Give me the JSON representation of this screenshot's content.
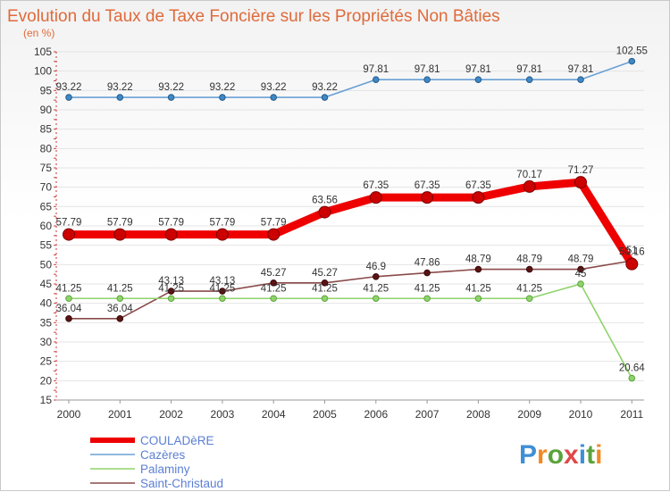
{
  "chart_data": {
    "type": "line",
    "title": "Evolution du Taux de Taxe Foncière sur les Propriétés Non Bâties",
    "subtitle": "(en %)",
    "categories": [
      "2000",
      "2001",
      "2002",
      "2003",
      "2004",
      "2005",
      "2006",
      "2007",
      "2008",
      "2009",
      "2010",
      "2011"
    ],
    "ylim": [
      15,
      105
    ],
    "yticks": [
      15,
      20,
      25,
      30,
      35,
      40,
      45,
      50,
      55,
      60,
      65,
      70,
      75,
      80,
      85,
      90,
      95,
      100,
      105
    ],
    "grid": true,
    "series": [
      {
        "name": "COULADèRE",
        "color": "#ee0000",
        "values": [
          57.79,
          57.79,
          57.79,
          57.79,
          57.79,
          63.56,
          67.35,
          67.35,
          67.35,
          70.17,
          71.27,
          50.16
        ],
        "labels": [
          "57.79",
          "57.79",
          "57.79",
          "57.79",
          "57.79",
          "63.56",
          "67.35",
          "67.35",
          "67.35",
          "70.17",
          "71.27",
          "50.16"
        ]
      },
      {
        "name": "Cazères",
        "color": "#6aa0d6",
        "values": [
          93.22,
          93.22,
          93.22,
          93.22,
          93.22,
          93.22,
          97.81,
          97.81,
          97.81,
          97.81,
          97.81,
          102.55
        ],
        "labels": [
          "93.22",
          "93.22",
          "93.22",
          "93.22",
          "93.22",
          "93.22",
          "97.81",
          "97.81",
          "97.81",
          "97.81",
          "97.81",
          "102.55"
        ]
      },
      {
        "name": "Palaminy",
        "color": "#8fd36a",
        "values": [
          41.25,
          41.25,
          41.25,
          41.25,
          41.25,
          41.25,
          41.25,
          41.25,
          41.25,
          41.25,
          45,
          20.64
        ],
        "labels": [
          "41.25",
          "41.25",
          "41.25",
          "41.25",
          "41.25",
          "41.25",
          "41.25",
          "41.25",
          "41.25",
          "41.25",
          "45",
          "20.64"
        ]
      },
      {
        "name": "Saint-Christaud",
        "color": "#8a4a4a",
        "values": [
          36.04,
          36.04,
          43.13,
          43.13,
          45.27,
          45.27,
          46.9,
          47.86,
          48.79,
          48.79,
          48.79,
          51
        ],
        "labels": [
          "36.04",
          "36.04",
          "43.13",
          "43.13",
          "45.27",
          "45.27",
          "46.9",
          "47.86",
          "48.79",
          "48.79",
          "48.79",
          "51"
        ]
      }
    ],
    "legend": [
      "COULADèRE",
      "Cazères",
      "Palaminy",
      "Saint-Christaud"
    ],
    "watermark": "Proxiti"
  }
}
